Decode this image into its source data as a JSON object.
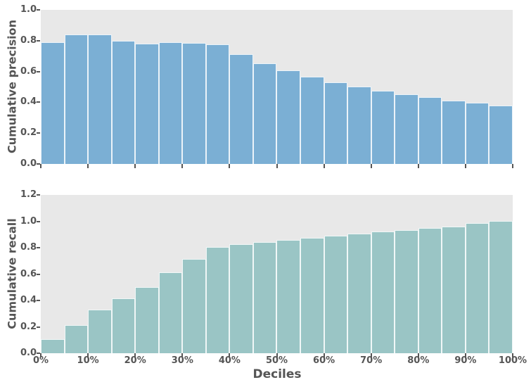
{
  "figure": {
    "xlabel": "Deciles",
    "x_tick_labels": [
      "0%",
      "10%",
      "20%",
      "30%",
      "40%",
      "50%",
      "60%",
      "70%",
      "80%",
      "90%",
      "100%"
    ]
  },
  "colors": {
    "panel_background": "#e8e8e8",
    "text": "#555555",
    "bar_edge": "rgba(255,255,255,0.85)",
    "precision_bar": "#7bafd4",
    "recall_bar": "#9ac5c5"
  },
  "chart_data": [
    {
      "type": "bar",
      "series_name": "cumulative-precision",
      "ylabel": "Cumulative precision",
      "ylim": [
        0,
        1.0
      ],
      "yticks": [
        "0.0",
        "0.2",
        "0.4",
        "0.6",
        "0.8",
        "1.0"
      ],
      "x_bin_start_percent": [
        0,
        5,
        10,
        15,
        20,
        25,
        30,
        35,
        40,
        45,
        50,
        55,
        60,
        65,
        70,
        75,
        80,
        85,
        90,
        95
      ],
      "x_bin_width_percent": 5,
      "values": [
        0.79,
        0.84,
        0.84,
        0.8,
        0.78,
        0.79,
        0.787,
        0.778,
        0.712,
        0.652,
        0.606,
        0.568,
        0.531,
        0.501,
        0.473,
        0.452,
        0.432,
        0.412,
        0.397,
        0.379
      ],
      "color": "#7bafd4",
      "grid": false,
      "legend": false
    },
    {
      "type": "bar",
      "series_name": "cumulative-recall",
      "ylabel": "Cumulative recall",
      "ylim": [
        0,
        1.2
      ],
      "yticks": [
        "0.0",
        "0.2",
        "0.4",
        "0.6",
        "0.8",
        "1.0",
        "1.2"
      ],
      "x_bin_start_percent": [
        0,
        5,
        10,
        15,
        20,
        25,
        30,
        35,
        40,
        45,
        50,
        55,
        60,
        65,
        70,
        75,
        80,
        85,
        90,
        95
      ],
      "x_bin_width_percent": 5,
      "values": [
        0.105,
        0.213,
        0.329,
        0.418,
        0.502,
        0.614,
        0.712,
        0.807,
        0.826,
        0.841,
        0.86,
        0.876,
        0.892,
        0.908,
        0.921,
        0.935,
        0.949,
        0.962,
        0.987,
        1.0
      ],
      "color": "#9ac5c5",
      "grid": false,
      "legend": false
    }
  ]
}
